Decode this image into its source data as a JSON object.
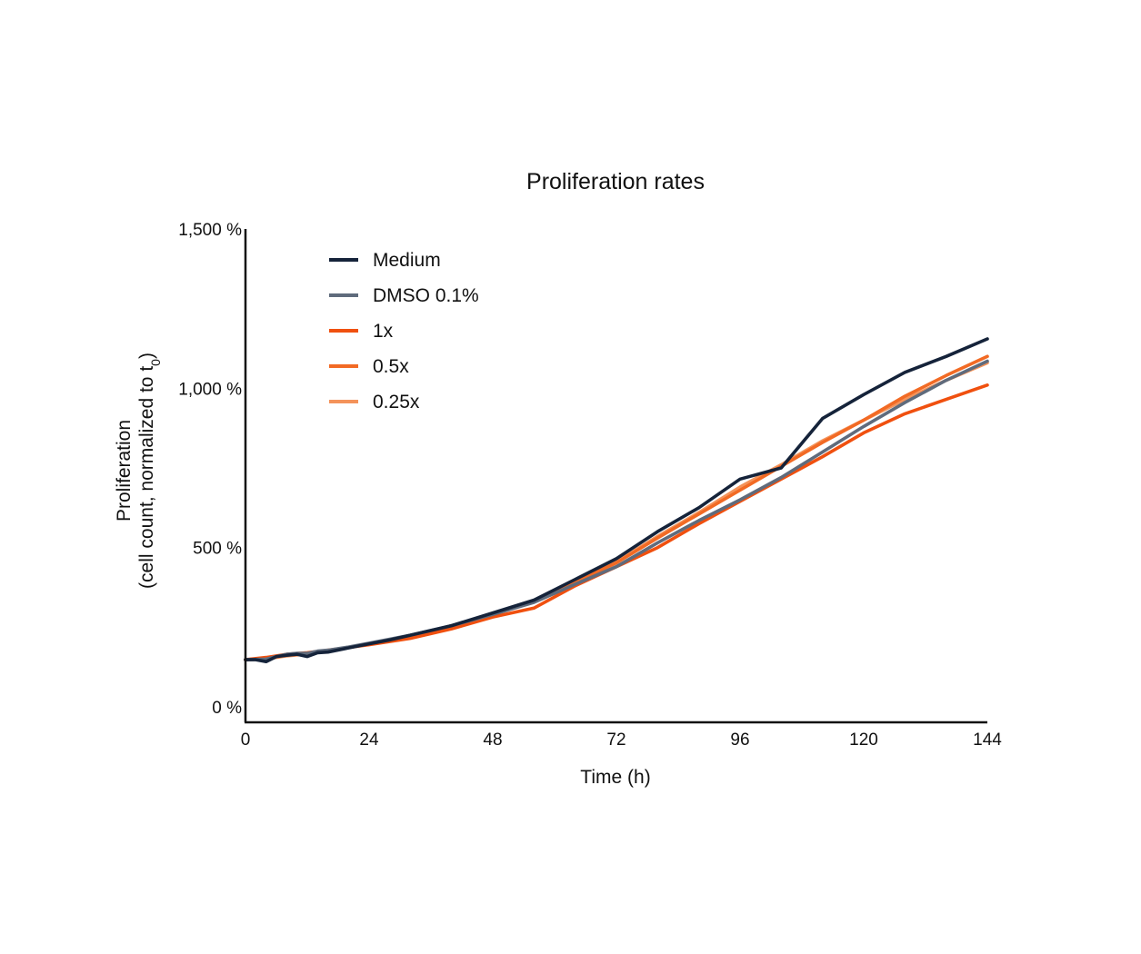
{
  "chart_data": {
    "type": "line",
    "title": "Proliferation rates",
    "xlabel": "Time (h)",
    "ylabel_line1": "Proliferation",
    "ylabel_line2_prefix": "(cell count, normalized to t",
    "ylabel_line2_subscript": "0",
    "ylabel_line2_suffix": ")",
    "xlim": [
      0,
      144
    ],
    "ylim": [
      0,
      1500
    ],
    "x_ticks": [
      0,
      24,
      48,
      72,
      96,
      120,
      144
    ],
    "x_tick_labels": [
      "0",
      "24",
      "48",
      "72",
      "96",
      "120",
      "144"
    ],
    "y_ticks": [
      0,
      500,
      1000,
      1500
    ],
    "y_tick_labels": [
      "0 %",
      "500 %",
      "1,000 %",
      "1,500 %"
    ],
    "grid": false,
    "legend_position": "top-left",
    "series": [
      {
        "name": "Medium",
        "color": "#15233a",
        "points": [
          [
            0,
            148
          ],
          [
            2,
            148
          ],
          [
            4,
            142
          ],
          [
            6,
            158
          ],
          [
            8,
            162
          ],
          [
            10,
            165
          ],
          [
            12,
            158
          ],
          [
            14,
            170
          ],
          [
            16,
            172
          ],
          [
            20,
            185
          ],
          [
            24,
            198
          ],
          [
            28,
            210
          ],
          [
            32,
            225
          ],
          [
            40,
            255
          ],
          [
            48,
            295
          ],
          [
            56,
            335
          ],
          [
            64,
            400
          ],
          [
            72,
            465
          ],
          [
            80,
            550
          ],
          [
            88,
            625
          ],
          [
            96,
            715
          ],
          [
            104,
            750
          ],
          [
            112,
            905
          ],
          [
            120,
            980
          ],
          [
            128,
            1050
          ],
          [
            136,
            1100
          ],
          [
            144,
            1155
          ]
        ]
      },
      {
        "name": "DMSO 0.1%",
        "color": "#5f6b7c",
        "points": [
          [
            0,
            148
          ],
          [
            4,
            150
          ],
          [
            6,
            158
          ],
          [
            8,
            165
          ],
          [
            10,
            168
          ],
          [
            12,
            168
          ],
          [
            14,
            175
          ],
          [
            16,
            178
          ],
          [
            20,
            188
          ],
          [
            24,
            200
          ],
          [
            32,
            225
          ],
          [
            40,
            255
          ],
          [
            48,
            290
          ],
          [
            56,
            328
          ],
          [
            64,
            385
          ],
          [
            72,
            440
          ],
          [
            80,
            515
          ],
          [
            88,
            585
          ],
          [
            96,
            650
          ],
          [
            104,
            720
          ],
          [
            112,
            800
          ],
          [
            120,
            880
          ],
          [
            128,
            955
          ],
          [
            136,
            1025
          ],
          [
            144,
            1085
          ]
        ]
      },
      {
        "name": "1x",
        "color": "#f0500f",
        "points": [
          [
            0,
            148
          ],
          [
            4,
            155
          ],
          [
            8,
            165
          ],
          [
            12,
            170
          ],
          [
            16,
            178
          ],
          [
            24,
            195
          ],
          [
            32,
            215
          ],
          [
            40,
            245
          ],
          [
            48,
            282
          ],
          [
            56,
            310
          ],
          [
            64,
            380
          ],
          [
            72,
            440
          ],
          [
            80,
            500
          ],
          [
            88,
            575
          ],
          [
            96,
            645
          ],
          [
            104,
            715
          ],
          [
            112,
            785
          ],
          [
            120,
            860
          ],
          [
            128,
            920
          ],
          [
            136,
            965
          ],
          [
            144,
            1010
          ]
        ]
      },
      {
        "name": "0.5x",
        "color": "#f26a24",
        "points": [
          [
            0,
            148
          ],
          [
            4,
            152
          ],
          [
            8,
            162
          ],
          [
            12,
            168
          ],
          [
            16,
            176
          ],
          [
            24,
            198
          ],
          [
            32,
            222
          ],
          [
            40,
            255
          ],
          [
            48,
            292
          ],
          [
            56,
            330
          ],
          [
            64,
            392
          ],
          [
            72,
            452
          ],
          [
            80,
            530
          ],
          [
            88,
            605
          ],
          [
            96,
            680
          ],
          [
            104,
            755
          ],
          [
            112,
            830
          ],
          [
            120,
            900
          ],
          [
            128,
            975
          ],
          [
            136,
            1040
          ],
          [
            144,
            1100
          ]
        ]
      },
      {
        "name": "0.25x",
        "color": "#f4935a",
        "points": [
          [
            0,
            148
          ],
          [
            4,
            150
          ],
          [
            8,
            160
          ],
          [
            12,
            166
          ],
          [
            16,
            175
          ],
          [
            24,
            197
          ],
          [
            32,
            222
          ],
          [
            40,
            254
          ],
          [
            48,
            292
          ],
          [
            56,
            330
          ],
          [
            64,
            395
          ],
          [
            72,
            455
          ],
          [
            80,
            535
          ],
          [
            88,
            610
          ],
          [
            96,
            690
          ],
          [
            104,
            760
          ],
          [
            112,
            835
          ],
          [
            120,
            900
          ],
          [
            128,
            965
          ],
          [
            136,
            1025
          ],
          [
            144,
            1080
          ]
        ]
      }
    ]
  }
}
